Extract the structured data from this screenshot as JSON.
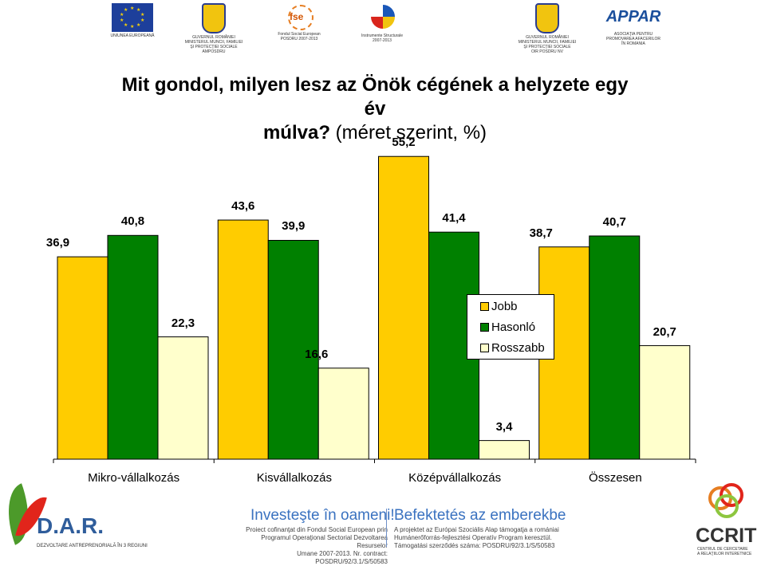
{
  "header": {
    "logos": [
      {
        "id": "eu",
        "caption": "UNIUNEA EUROPEANĂ"
      },
      {
        "id": "gov1",
        "caption": "GUVERNUL ROMÂNIEI\nMINISTERUL MUNCII, FAMILIEI\nŞI PROTECŢIEI SOCIALE\nAMPOSDRU"
      },
      {
        "id": "fse",
        "caption": "Fondul Social European\nPOSDRU 2007-2013",
        "mark": "fse"
      },
      {
        "id": "is",
        "caption": "Instrumente Structurale\n2007-2013"
      },
      {
        "id": "gov2",
        "caption": "GUVERNUL ROMÂNIEI\nMINISTERUL MUNCII, FAMILIEI\nŞI PROTECŢIEI SOCIALE\nOIR POSDRU NV"
      },
      {
        "id": "appar",
        "caption": "ASOCIAŢIA PENTRU\nPROMOVAREA AFACERILOR\nÎN ROMANIA",
        "mark": "APPAR"
      }
    ]
  },
  "chart_data": {
    "type": "bar",
    "title_line1": "Mit gondol, milyen lesz az Önök cégének a helyzete egy év",
    "title_line2_bold": "múlva?",
    "title_line2_rest": " (méret szerint, %)",
    "categories": [
      "Mikro-vállalkozás",
      "Kisvállalkozás",
      "Középvállalkozás",
      "Összesen"
    ],
    "series": [
      {
        "name": "Jobb",
        "color": "#ffcc00",
        "values": [
          36.9,
          43.6,
          55.2,
          38.7
        ]
      },
      {
        "name": "Hasonló",
        "color": "#008000",
        "values": [
          40.8,
          39.9,
          41.4,
          40.7
        ]
      },
      {
        "name": "Rosszabb",
        "color": "#ffffcc",
        "values": [
          22.3,
          16.6,
          3.4,
          20.7
        ]
      }
    ],
    "value_labels": [
      [
        "36,9",
        "43,6",
        "55,2",
        "38,7"
      ],
      [
        "40,8",
        "39,9",
        "41,4",
        "40,7"
      ],
      [
        "22,3",
        "16,6",
        "3,4",
        "20,7"
      ]
    ],
    "ylim": [
      0,
      60
    ],
    "legend_position": "center-right",
    "grid": false
  },
  "footer": {
    "dar_name": "D.A.R.",
    "dar_sub": "DEZVOLTARE ANTREPRENORIALĂ ÎN 3 REGIUNI",
    "ro_heading": "Investeşte în oameni!",
    "ro_text": "Proiect cofinanţat din Fondul Social European prin\nProgramul Operaţional Sectorial Dezvoltarea Resurselor\nUmane 2007-2013. Nr. contract: POSDRU/92/3.1/S/50583",
    "hu_heading": "Befektetés az emberekbe",
    "hu_text": "A projektet az Európai Szociális Alap támogatja a romániai\nHumánerőforrás-fejlesztési Operatív Program keresztül.\nTámogatási szerződés száma: POSDRU/92/3.1/S/50583",
    "ccrit_name": "CCRIT",
    "ccrit_sub": "CENTRUL DE CERCETARE\nA RELAŢIILOR INTERETNICE"
  }
}
